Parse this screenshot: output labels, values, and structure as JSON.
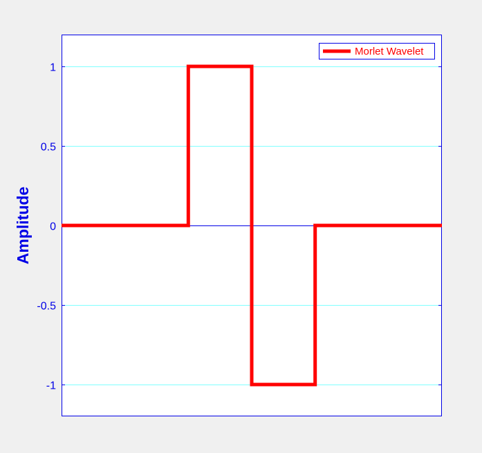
{
  "chart_data": {
    "type": "line",
    "title": "",
    "xlabel": "",
    "ylabel": "Amplitude",
    "xlim": [
      0,
      6
    ],
    "ylim": [
      -1.2,
      1.2
    ],
    "yticks": [
      -1,
      -0.5,
      0,
      0.5,
      1
    ],
    "ytick_labels": [
      "-1",
      "-0.5",
      "0",
      "0.5",
      "1"
    ],
    "grid": true,
    "legend_position": "top-right",
    "series": [
      {
        "name": "Morlet Wavelet",
        "color": "#ff0000",
        "style": "step",
        "x": [
          0,
          2,
          2,
          3,
          3,
          4,
          4,
          6
        ],
        "y": [
          0,
          0,
          1,
          1,
          -1,
          -1,
          0,
          0
        ]
      }
    ]
  },
  "colors": {
    "background": "#f0f0f0",
    "plot_area": "#ffffff",
    "axis": "#0000e6",
    "grid": "#80ffff",
    "series": "#ff0000"
  }
}
